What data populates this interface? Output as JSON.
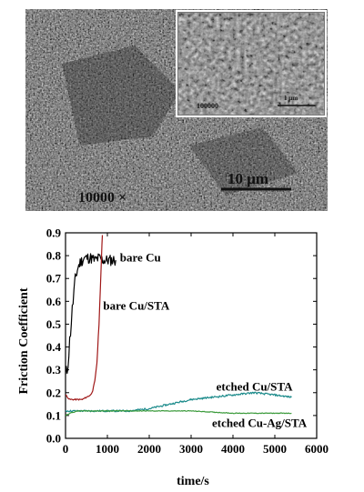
{
  "micrograph": {
    "magnification_label": "10000 ×",
    "scale_label": "10 μm",
    "inset": {
      "magnification_label": "100000",
      "scale_label": "1 μm"
    },
    "colors": {
      "background": "#5e5e5e",
      "grain_light": "#c8c8c8",
      "grain_dark": "#262626"
    }
  },
  "chart_data": {
    "type": "line",
    "xlabel": "time/s",
    "ylabel": "Friction Coefficient",
    "xlim": [
      0,
      6000
    ],
    "ylim": [
      0.0,
      0.9
    ],
    "xticks": [
      0,
      1000,
      2000,
      3000,
      4000,
      5000,
      6000
    ],
    "yticks": [
      0.0,
      0.1,
      0.2,
      0.3,
      0.4,
      0.5,
      0.6,
      0.7,
      0.8,
      0.9
    ],
    "grid": false,
    "series": [
      {
        "name": "bare Cu",
        "color": "#000000",
        "x": [
          0,
          40,
          80,
          120,
          160,
          200,
          250,
          300,
          350,
          400,
          450,
          500,
          600,
          700,
          800,
          900,
          1000,
          1100,
          1200
        ],
        "y": [
          0.27,
          0.3,
          0.38,
          0.47,
          0.56,
          0.64,
          0.71,
          0.75,
          0.77,
          0.78,
          0.79,
          0.79,
          0.79,
          0.78,
          0.79,
          0.78,
          0.78,
          0.78,
          0.78
        ]
      },
      {
        "name": "bare Cu/STA",
        "color": "#a01818",
        "x": [
          0,
          50,
          100,
          200,
          300,
          400,
          500,
          600,
          650,
          700,
          750,
          800,
          830,
          860,
          880
        ],
        "y": [
          0.19,
          0.18,
          0.17,
          0.17,
          0.17,
          0.17,
          0.18,
          0.19,
          0.21,
          0.25,
          0.33,
          0.5,
          0.65,
          0.8,
          0.89
        ]
      },
      {
        "name": "etched Cu/STA",
        "color": "#1a8a8a",
        "x": [
          0,
          100,
          300,
          600,
          1000,
          1500,
          2000,
          2500,
          3000,
          3500,
          4000,
          4500,
          5000,
          5400
        ],
        "y": [
          0.12,
          0.12,
          0.12,
          0.12,
          0.12,
          0.12,
          0.13,
          0.15,
          0.17,
          0.18,
          0.19,
          0.2,
          0.19,
          0.18
        ]
      },
      {
        "name": "etched Cu-Ag/STA",
        "color": "#3a9a3a",
        "x": [
          0,
          100,
          300,
          600,
          1000,
          2000,
          3000,
          4000,
          5000,
          5400
        ],
        "y": [
          0.1,
          0.11,
          0.12,
          0.12,
          0.12,
          0.12,
          0.12,
          0.11,
          0.11,
          0.11
        ]
      }
    ],
    "annotations": [
      {
        "text": "bare Cu",
        "series": "bare Cu",
        "at": [
          1300,
          0.79
        ]
      },
      {
        "text": "bare Cu/STA",
        "series": "bare Cu/STA",
        "at": [
          900,
          0.58
        ]
      },
      {
        "text": "etched Cu/STA",
        "series": "etched Cu/STA",
        "at": [
          3600,
          0.225
        ]
      },
      {
        "text": "etched Cu-Ag/STA",
        "series": "etched Cu-Ag/STA",
        "at": [
          3500,
          0.065
        ]
      }
    ]
  }
}
